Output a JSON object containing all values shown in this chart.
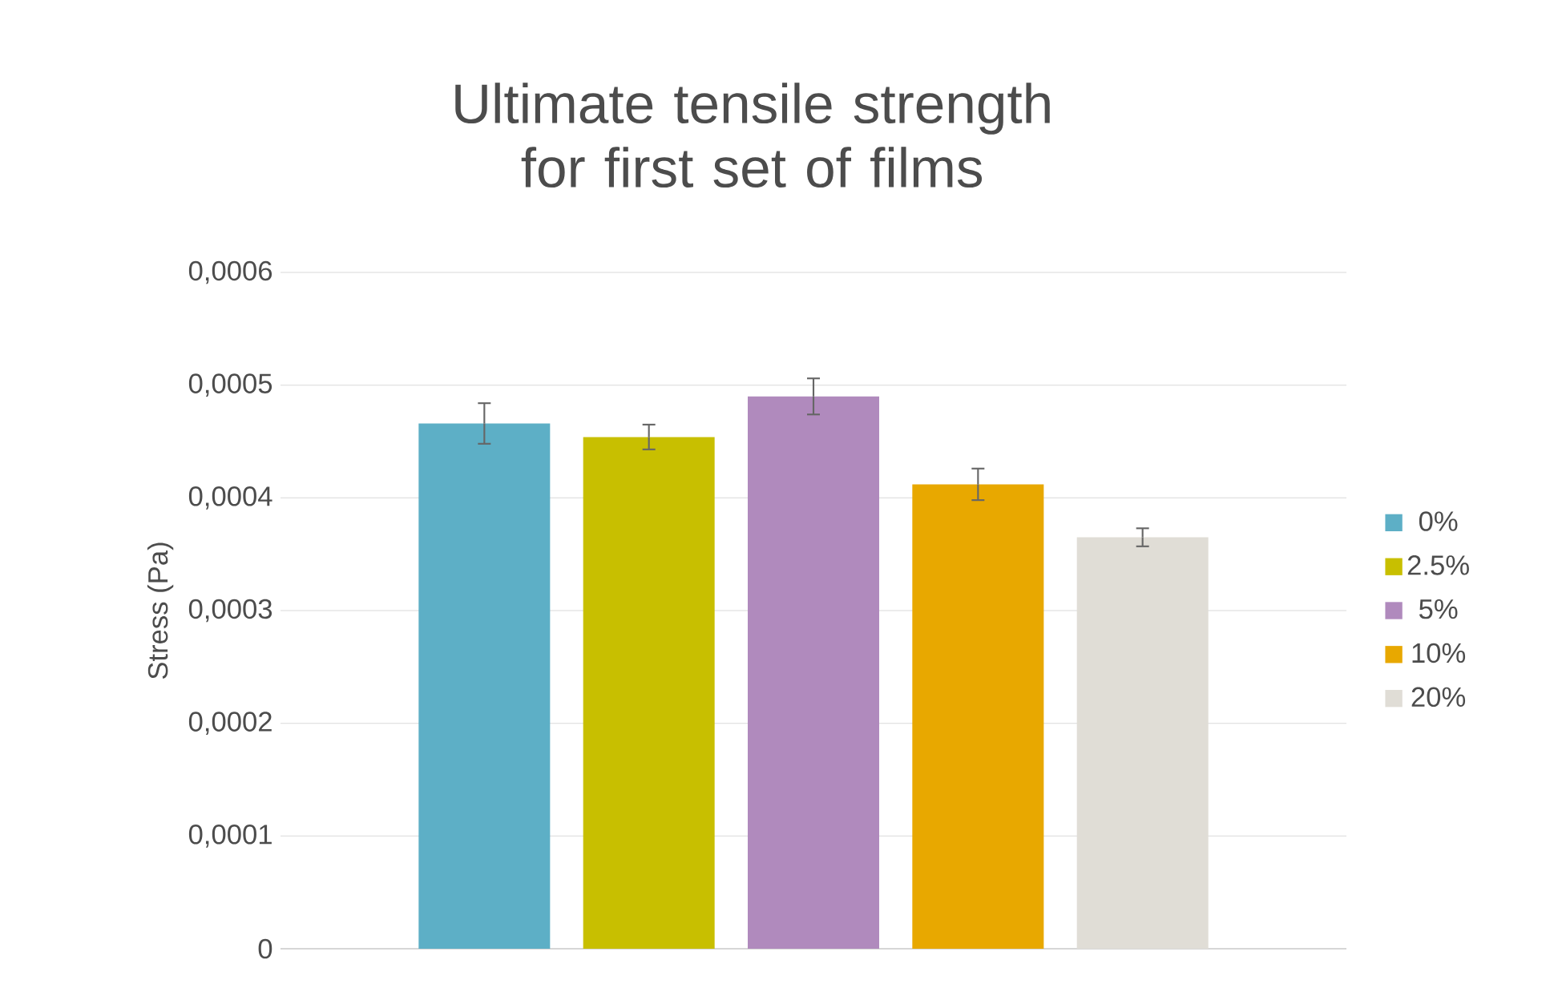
{
  "chart_data": {
    "type": "bar",
    "title": "Ultimate tensile strength for first set of films",
    "ylabel": "Stress (Pa)",
    "categories": [
      null
    ],
    "series": [
      {
        "name": "0%",
        "color": "#5dafc6",
        "values": [
          0.000466
        ],
        "errors": [
          1.8e-05
        ]
      },
      {
        "name": "2.5%",
        "color": "#c8bf00",
        "values": [
          0.000454
        ],
        "errors": [
          1.1e-05
        ]
      },
      {
        "name": "5%",
        "color": "#b08abd",
        "values": [
          0.00049
        ],
        "errors": [
          1.6e-05
        ]
      },
      {
        "name": "10%",
        "color": "#e8a800",
        "values": [
          0.000412
        ],
        "errors": [
          1.4e-05
        ]
      },
      {
        "name": "20%",
        "color": "#e0ddd6",
        "values": [
          0.000365
        ],
        "errors": [
          8e-06
        ]
      }
    ],
    "ylim": [
      0,
      0.0006
    ],
    "yticks": [
      0,
      {
        "value": 0.0001,
        "label": "0,0001"
      },
      {
        "value": 0.0002,
        "label": "0,0002"
      },
      {
        "value": 0.0003,
        "label": "0,0003"
      },
      {
        "value": 0.0004,
        "label": "0,0004"
      },
      {
        "value": 0.0005,
        "label": "0,0005"
      },
      {
        "value": 0.0006,
        "label": "0,0006"
      }
    ],
    "grid": "y",
    "legend": "right",
    "tick_labels": "y"
  }
}
